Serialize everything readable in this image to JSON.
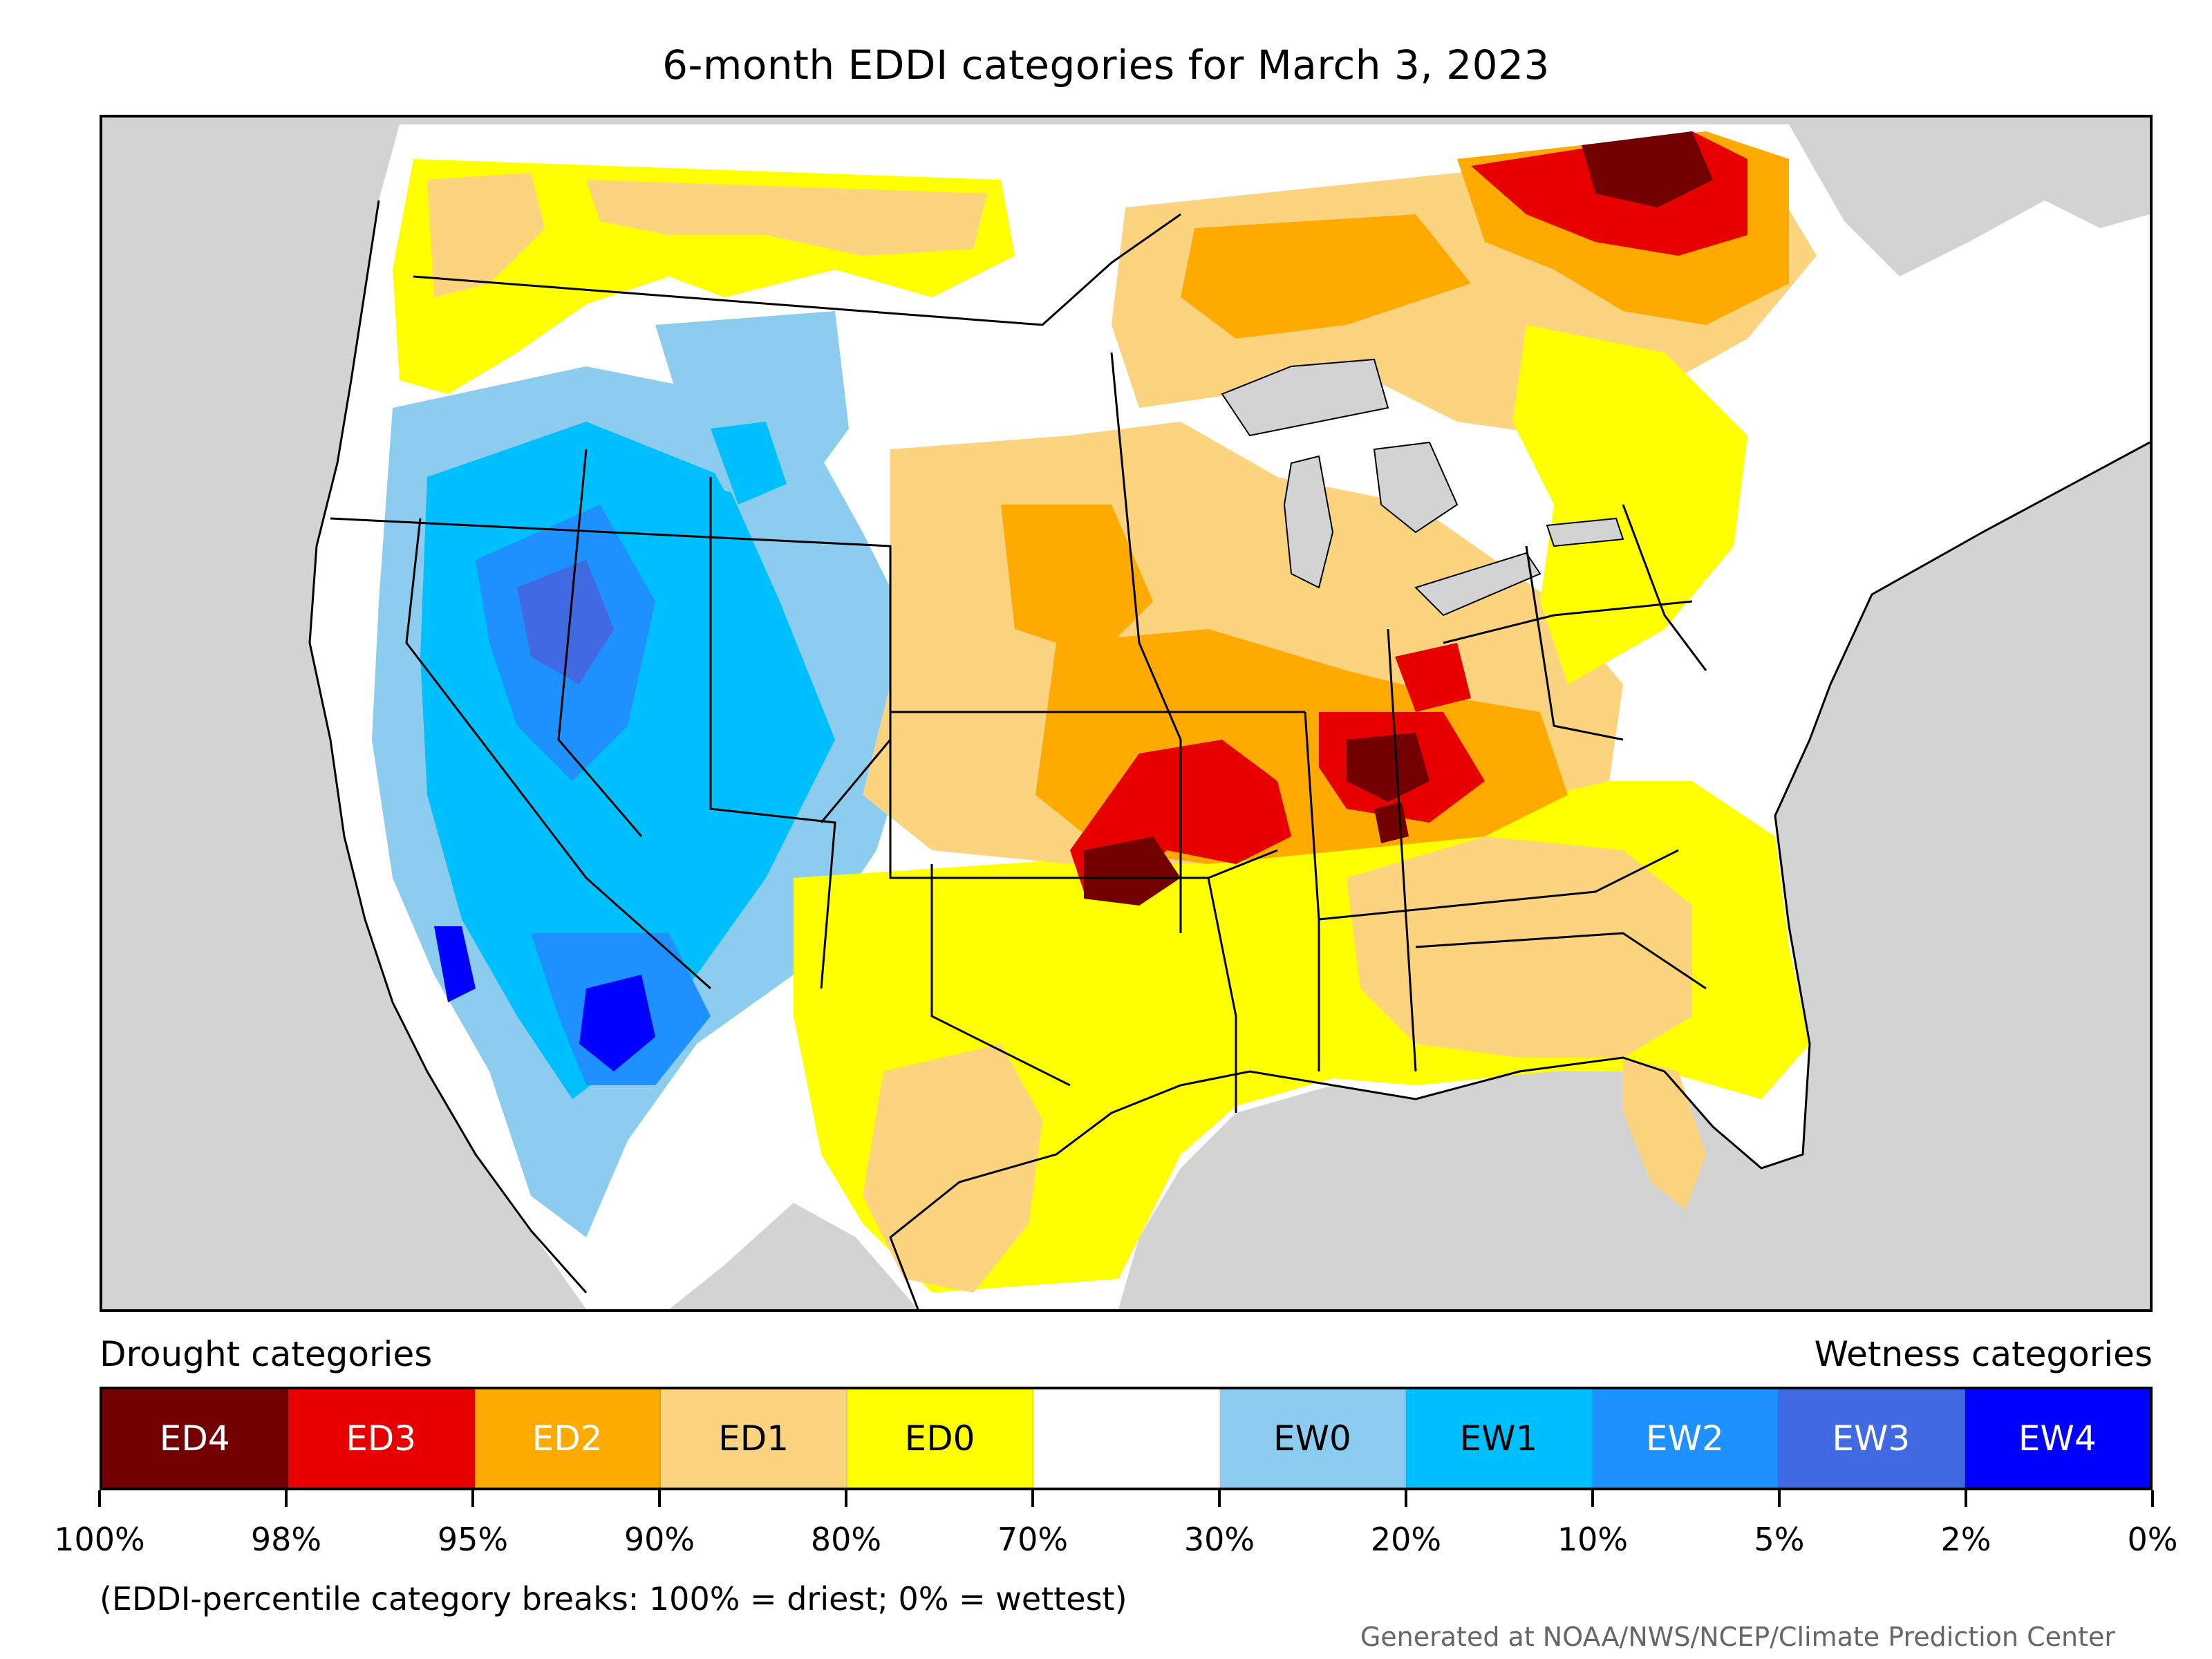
{
  "title": "6-month EDDI categories for March 3, 2023",
  "legend": {
    "drought_label": "Drought categories",
    "wetness_label": "Wetness categories",
    "categories": [
      {
        "label": "ED4",
        "color": "#730000",
        "text_color": "#ffffff"
      },
      {
        "label": "ED3",
        "color": "#e60000",
        "text_color": "#ffffff"
      },
      {
        "label": "ED2",
        "color": "#ffaa00",
        "text_color": "#ffffff"
      },
      {
        "label": "ED1",
        "color": "#fcd37f",
        "text_color": "#000000"
      },
      {
        "label": "ED0",
        "color": "#ffff00",
        "text_color": "#000000"
      },
      {
        "label": "",
        "color": "#ffffff",
        "text_color": "#000000"
      },
      {
        "label": "EW0",
        "color": "#8ccdef",
        "text_color": "#000000"
      },
      {
        "label": "EW1",
        "color": "#00bfff",
        "text_color": "#000000"
      },
      {
        "label": "EW2",
        "color": "#1e90ff",
        "text_color": "#ffffff"
      },
      {
        "label": "EW3",
        "color": "#4169e1",
        "text_color": "#ffffff"
      },
      {
        "label": "EW4",
        "color": "#0000ff",
        "text_color": "#ffffff"
      }
    ],
    "breaks": [
      "100%",
      "98%",
      "95%",
      "90%",
      "80%",
      "70%",
      "30%",
      "20%",
      "10%",
      "5%",
      "2%",
      "0%"
    ]
  },
  "note": "(EDDI-percentile category breaks: 100% = driest; 0% = wettest)",
  "credit": "Generated at NOAA/NWS/NCEP/Climate Prediction Center",
  "colors": {
    "background": "#d3d3d3",
    "water": "#d3d3d3",
    "border": "#000000"
  }
}
